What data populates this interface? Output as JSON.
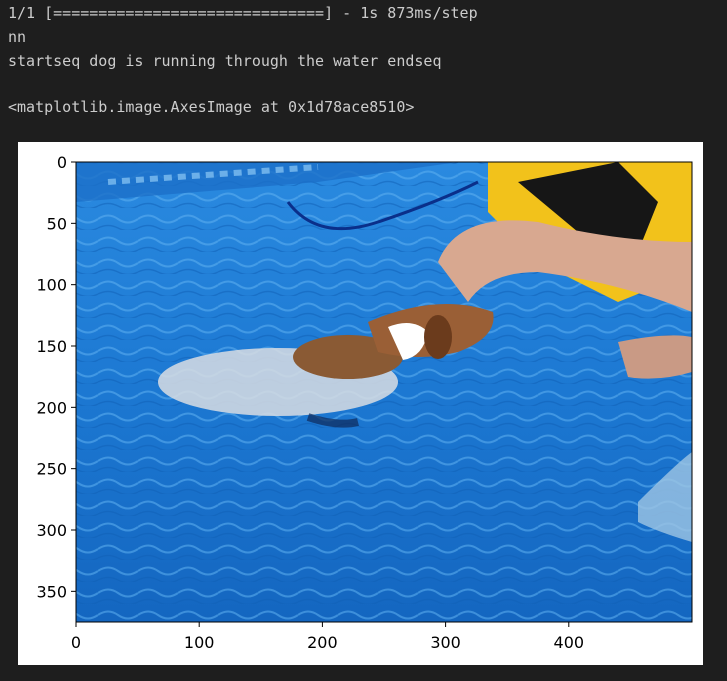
{
  "output": {
    "progress_line": "1/1 [==============================] - 1s 873ms/step",
    "line2": "nn",
    "caption_line": "startseq dog is running through the water endseq",
    "repr_line": "<matplotlib.image.AxesImage at 0x1d78ace8510>"
  },
  "plot": {
    "image_subject": "dog swimming in blue pool beside person",
    "y_ticks": [
      "0",
      "50",
      "100",
      "150",
      "200",
      "250",
      "300",
      "350"
    ],
    "x_ticks": [
      "0",
      "100",
      "200",
      "300",
      "400"
    ]
  },
  "colors": {
    "background": "#1e1e1e",
    "text": "#cccccc",
    "pool_blue": "#1e7fd6"
  }
}
